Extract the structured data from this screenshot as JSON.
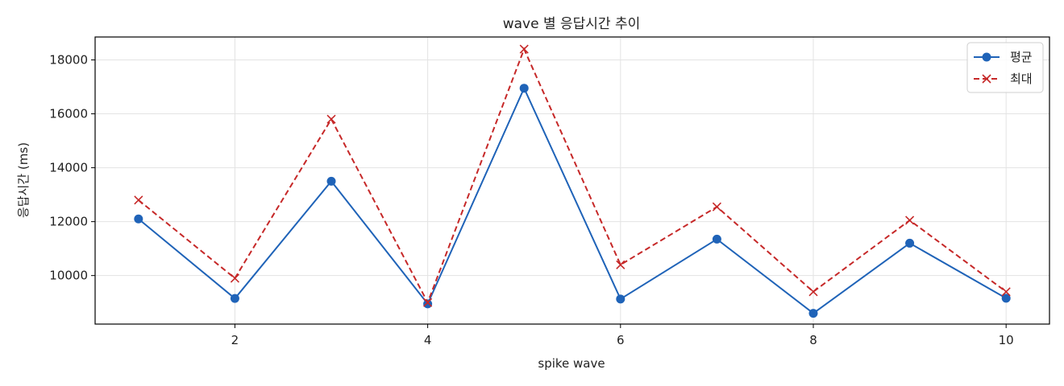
{
  "chart_data": {
    "type": "line",
    "title": "wave 별 응답시간 추이",
    "xlabel": "spike wave",
    "ylabel": "응답시간 (ms)",
    "xlim": [
      0.55,
      10.45
    ],
    "ylim": [
      8200,
      18850
    ],
    "x_ticks": [
      2,
      4,
      6,
      8,
      10
    ],
    "y_ticks": [
      10000,
      12000,
      14000,
      16000,
      18000
    ],
    "grid": true,
    "legend_position": "top-right",
    "x": [
      1,
      2,
      3,
      4,
      5,
      6,
      7,
      8,
      9,
      10
    ],
    "series": [
      {
        "name": "평균",
        "color": "#1f63b8",
        "style": "solid",
        "marker": "circle",
        "values": [
          12100,
          9150,
          13500,
          8950,
          16950,
          9130,
          11350,
          8600,
          11200,
          9160
        ]
      },
      {
        "name": "최대",
        "color": "#c62828",
        "style": "dashed",
        "marker": "x",
        "values": [
          12800,
          9900,
          15800,
          9000,
          18400,
          10400,
          12550,
          9400,
          12050,
          9400
        ]
      }
    ]
  }
}
